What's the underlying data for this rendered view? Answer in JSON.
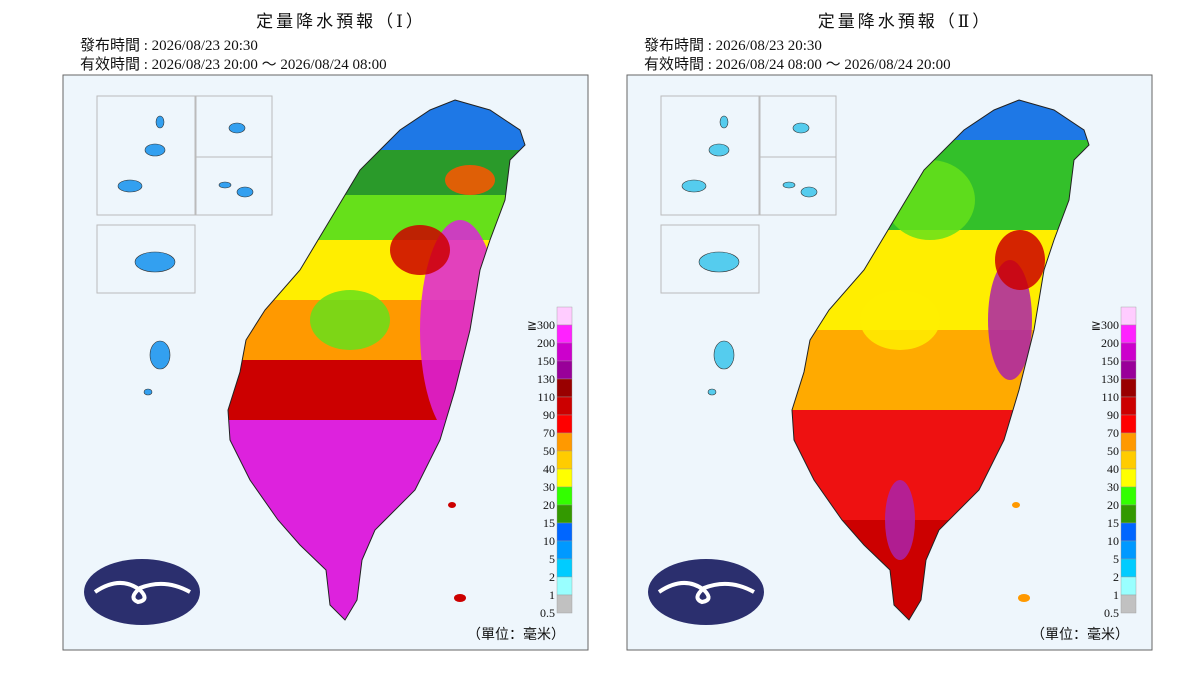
{
  "panels": [
    {
      "title": "定量降水預報（Ⅰ）",
      "issued": "發布時間 : 2026/08/23 20:30",
      "valid": "有效時間 : 2026/08/23 20:00 ～ 2026/08/24 08:00"
    },
    {
      "title": "定量降水預報（Ⅱ）",
      "issued": "發布時間 : 2026/08/23 20:30",
      "valid": "有效時間 : 2026/08/24 08:00 ～ 2026/08/24 20:00"
    }
  ],
  "legend": {
    "labels": [
      "≧300",
      "200",
      "150",
      "130",
      "110",
      "90",
      "70",
      "50",
      "40",
      "30",
      "20",
      "15",
      "10",
      "5",
      "2",
      "1",
      "0.5"
    ],
    "colors": [
      "#ffccff",
      "#ff22ff",
      "#cc00cc",
      "#990099",
      "#990000",
      "#cc0000",
      "#ff0000",
      "#ff9900",
      "#ffcc00",
      "#ffff00",
      "#33ff00",
      "#339900",
      "#0066ff",
      "#0099ff",
      "#00ccff",
      "#99ffff",
      "#c1c1c1"
    ]
  },
  "unit": "（單位：毫米）"
}
